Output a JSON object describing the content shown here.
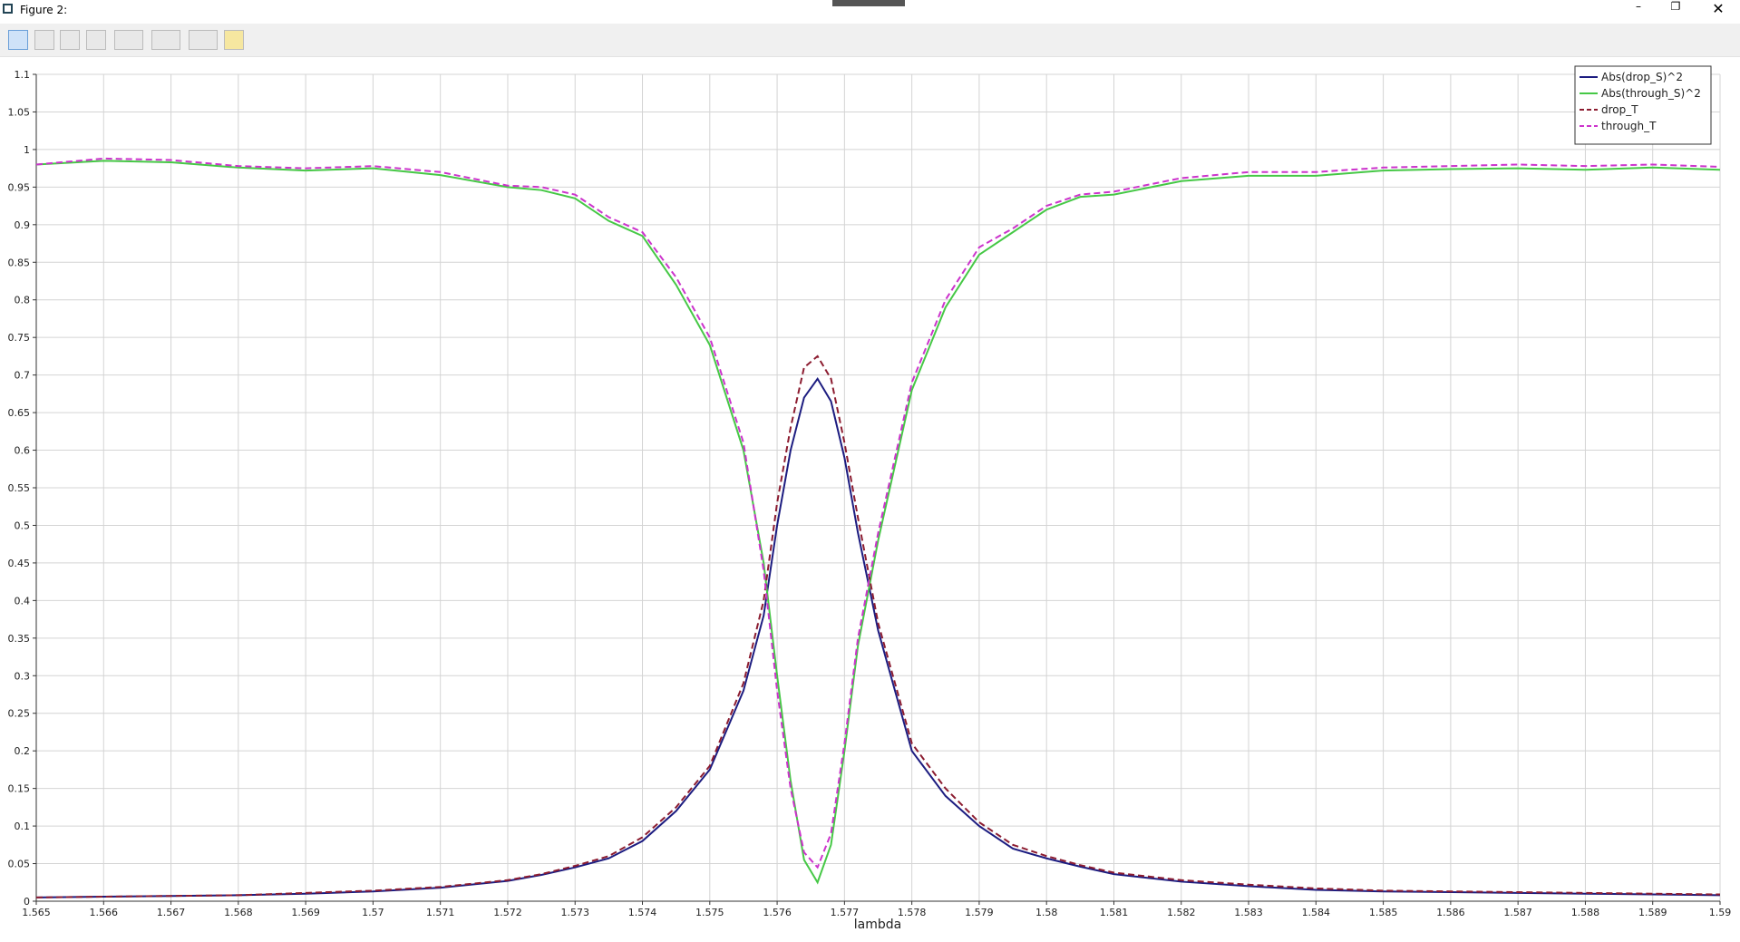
{
  "window": {
    "title": "Figure 2:"
  },
  "chart_data": {
    "type": "line",
    "x_label": "lambda",
    "x": [
      1.565,
      1.566,
      1.567,
      1.568,
      1.569,
      1.57,
      1.571,
      1.572,
      1.5725,
      1.573,
      1.5735,
      1.574,
      1.5745,
      1.575,
      1.5755,
      1.5758,
      1.576,
      1.5762,
      1.5764,
      1.5766,
      1.5768,
      1.577,
      1.5772,
      1.5775,
      1.578,
      1.5785,
      1.579,
      1.5795,
      1.58,
      1.5805,
      1.581,
      1.582,
      1.583,
      1.584,
      1.585,
      1.586,
      1.587,
      1.588,
      1.589,
      1.59
    ],
    "series": [
      {
        "name": "Abs(drop_S)^2",
        "color": "#1c1c80",
        "dash": false,
        "values": [
          0.005,
          0.006,
          0.007,
          0.008,
          0.01,
          0.013,
          0.018,
          0.027,
          0.035,
          0.045,
          0.057,
          0.08,
          0.12,
          0.175,
          0.28,
          0.38,
          0.5,
          0.6,
          0.67,
          0.695,
          0.665,
          0.59,
          0.49,
          0.36,
          0.2,
          0.14,
          0.1,
          0.07,
          0.057,
          0.046,
          0.036,
          0.026,
          0.02,
          0.015,
          0.013,
          0.012,
          0.011,
          0.01,
          0.009,
          0.008
        ]
      },
      {
        "name": "Abs(through_S)^2",
        "color": "#46c846",
        "dash": false,
        "values": [
          0.98,
          0.985,
          0.983,
          0.976,
          0.972,
          0.975,
          0.966,
          0.95,
          0.946,
          0.935,
          0.905,
          0.885,
          0.82,
          0.74,
          0.6,
          0.45,
          0.3,
          0.16,
          0.055,
          0.025,
          0.075,
          0.2,
          0.34,
          0.48,
          0.68,
          0.79,
          0.86,
          0.89,
          0.92,
          0.937,
          0.94,
          0.958,
          0.965,
          0.965,
          0.972,
          0.974,
          0.975,
          0.973,
          0.976,
          0.973
        ]
      },
      {
        "name": "drop_T",
        "color": "#8c1c30",
        "dash": true,
        "values": [
          0.005,
          0.006,
          0.007,
          0.008,
          0.011,
          0.014,
          0.019,
          0.028,
          0.036,
          0.047,
          0.06,
          0.085,
          0.125,
          0.18,
          0.29,
          0.4,
          0.53,
          0.63,
          0.71,
          0.725,
          0.695,
          0.61,
          0.51,
          0.37,
          0.21,
          0.15,
          0.105,
          0.075,
          0.06,
          0.048,
          0.038,
          0.028,
          0.022,
          0.017,
          0.014,
          0.013,
          0.012,
          0.011,
          0.01,
          0.009
        ]
      },
      {
        "name": "through_T",
        "color": "#cc33cc",
        "dash": true,
        "values": [
          0.98,
          0.988,
          0.986,
          0.978,
          0.975,
          0.978,
          0.97,
          0.952,
          0.95,
          0.94,
          0.91,
          0.89,
          0.83,
          0.75,
          0.61,
          0.44,
          0.28,
          0.15,
          0.065,
          0.045,
          0.09,
          0.21,
          0.35,
          0.49,
          0.69,
          0.8,
          0.87,
          0.895,
          0.925,
          0.94,
          0.944,
          0.962,
          0.97,
          0.97,
          0.976,
          0.978,
          0.98,
          0.978,
          0.98,
          0.977
        ]
      }
    ],
    "xlim": [
      1.565,
      1.59
    ],
    "xticks": [
      1.565,
      1.566,
      1.567,
      1.568,
      1.569,
      1.57,
      1.571,
      1.572,
      1.573,
      1.574,
      1.575,
      1.576,
      1.577,
      1.578,
      1.579,
      1.58,
      1.581,
      1.582,
      1.583,
      1.584,
      1.585,
      1.586,
      1.587,
      1.588,
      1.589,
      1.59
    ],
    "ylim": [
      0,
      1.1
    ],
    "yticks": [
      0,
      0.05,
      0.1,
      0.15,
      0.2,
      0.25,
      0.3,
      0.35,
      0.4,
      0.45,
      0.5,
      0.55,
      0.6,
      0.65,
      0.7,
      0.75,
      0.8,
      0.85,
      0.9,
      0.95,
      1,
      1.05,
      1.1
    ],
    "grid": true,
    "legend": "upper right"
  }
}
